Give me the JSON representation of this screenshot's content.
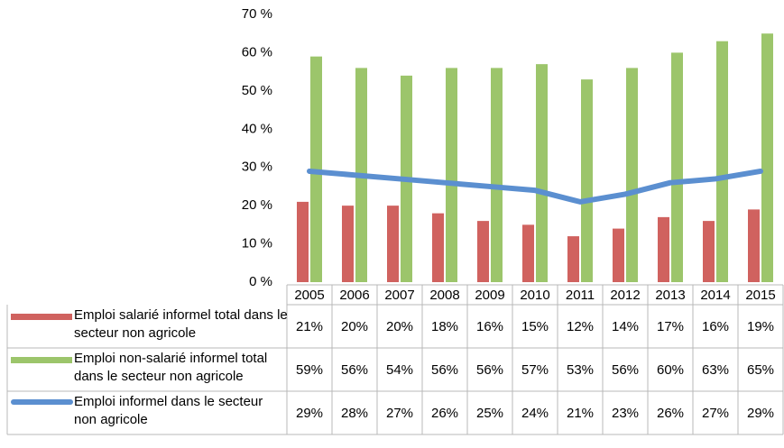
{
  "chart_data": {
    "type": "bar",
    "categories": [
      "2005",
      "2006",
      "2007",
      "2008",
      "2009",
      "2010",
      "2011",
      "2012",
      "2013",
      "2014",
      "2015"
    ],
    "series": [
      {
        "name": "Emploi salarié informel total dans le secteur non agricole",
        "type": "bar",
        "color": "#d0625f",
        "values": [
          21,
          20,
          20,
          18,
          16,
          15,
          12,
          14,
          17,
          16,
          19
        ],
        "value_labels": [
          "21%",
          "20%",
          "20%",
          "18%",
          "16%",
          "15%",
          "12%",
          "14%",
          "17%",
          "16%",
          "19%"
        ]
      },
      {
        "name": "Emploi non-salarié informel total dans le secteur non agricole",
        "type": "bar",
        "color": "#9cc56b",
        "values": [
          59,
          56,
          54,
          56,
          56,
          57,
          53,
          56,
          60,
          63,
          65
        ],
        "value_labels": [
          "59%",
          "56%",
          "54%",
          "56%",
          "56%",
          "57%",
          "53%",
          "56%",
          "60%",
          "63%",
          "65%"
        ]
      },
      {
        "name": "Emploi informel dans le secteur non agricole",
        "type": "line",
        "color": "#5b8fd0",
        "values": [
          29,
          28,
          27,
          26,
          25,
          24,
          21,
          23,
          26,
          27,
          29
        ],
        "value_labels": [
          "29%",
          "28%",
          "27%",
          "26%",
          "25%",
          "24%",
          "21%",
          "23%",
          "26%",
          "27%",
          "29%"
        ]
      }
    ],
    "ylim": [
      0,
      70
    ],
    "yticks": [
      {
        "value": 0,
        "label": "0 %"
      },
      {
        "value": 10,
        "label": "10 %"
      },
      {
        "value": 20,
        "label": "20 %"
      },
      {
        "value": 30,
        "label": "30 %"
      },
      {
        "value": 40,
        "label": "40 %"
      },
      {
        "value": 50,
        "label": "50 %"
      },
      {
        "value": 60,
        "label": "60 %"
      },
      {
        "value": 70,
        "label": "70 %"
      }
    ],
    "grid": false
  }
}
